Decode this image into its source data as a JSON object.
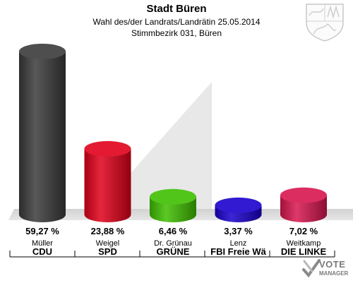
{
  "header": {
    "title": "Stadt Büren",
    "subtitle1": "Wahl des/der Landrats/Landrätin 25.05.2014",
    "subtitle2": "Stimmbezirk 031, Büren"
  },
  "logo": {
    "crest_icon": "nrw-coat-of-arms-icon",
    "brand_line1": "VOTE",
    "brand_line2": "MANAGER"
  },
  "chart_data": {
    "type": "bar",
    "ylim": [
      0,
      60
    ],
    "categories": [
      {
        "candidate": "Müller",
        "party": "CDU",
        "value": 59.27,
        "label": "59,27 %",
        "color": "#3a3a3a"
      },
      {
        "candidate": "Weigel",
        "party": "SPD",
        "value": 23.88,
        "label": "23,88 %",
        "color": "#e0001a"
      },
      {
        "candidate": "Dr. Grünau",
        "party": "GRÜNE",
        "value": 6.46,
        "label": "6,46 %",
        "color": "#3fbf00"
      },
      {
        "candidate": "Lenz",
        "party": "FBI Freie Wä",
        "value": 3.37,
        "label": "3,37 %",
        "color": "#1a00cc"
      },
      {
        "candidate": "Weitkamp",
        "party": "DIE LINKE",
        "value": 7.02,
        "label": "7,02 %",
        "color": "#d8164e"
      }
    ]
  }
}
